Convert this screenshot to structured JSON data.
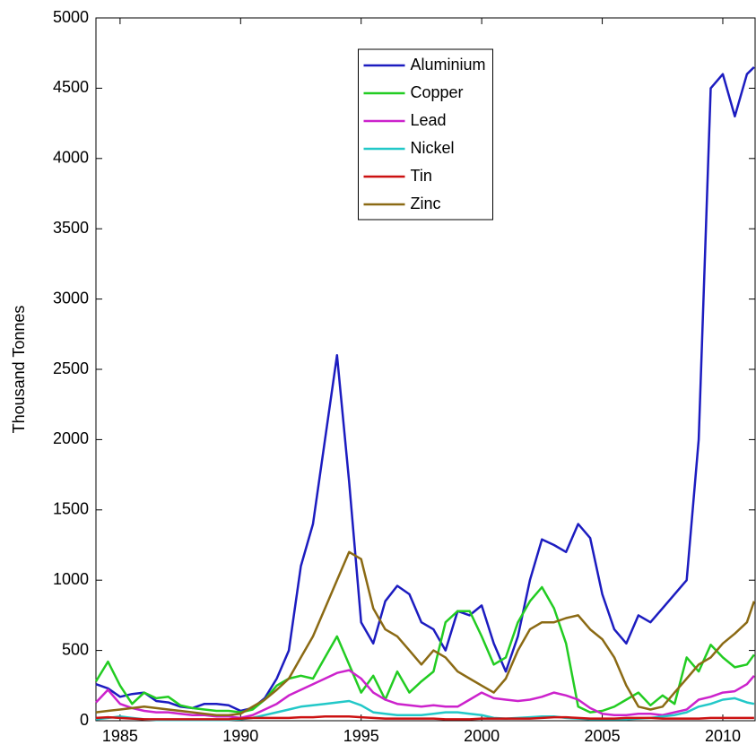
{
  "chart_data": {
    "type": "line",
    "y_label": "Thousand Tonnes",
    "xlim": [
      1984,
      2011.34
    ],
    "ylim": [
      0,
      5000
    ],
    "xticks": [
      1985,
      1990,
      1995,
      2000,
      2005,
      2010
    ],
    "yticks": [
      0,
      500,
      1000,
      1500,
      2000,
      2500,
      3000,
      3500,
      4000,
      4500,
      5000
    ],
    "grid": false,
    "legend": "upper center",
    "x": [
      1984,
      1984.5,
      1985,
      1985.5,
      1986,
      1986.5,
      1987,
      1987.5,
      1988,
      1988.5,
      1989,
      1989.5,
      1990,
      1990.5,
      1991,
      1991.5,
      1992,
      1992.5,
      1993,
      1993.5,
      1994,
      1994.5,
      1995,
      1995.5,
      1996,
      1996.5,
      1997,
      1997.5,
      1998,
      1998.5,
      1999,
      1999.5,
      2000,
      2000.5,
      2001,
      2001.5,
      2002,
      2002.5,
      2003,
      2003.5,
      2004,
      2004.5,
      2005,
      2005.5,
      2006,
      2006.5,
      2007,
      2007.5,
      2008,
      2008.5,
      2009,
      2009.5,
      2010,
      2010.5,
      2011,
      2011.3
    ],
    "series": [
      {
        "name": "Aluminium",
        "color": "#1c1cc0",
        "values": [
          260,
          230,
          170,
          190,
          200,
          140,
          130,
          100,
          90,
          120,
          120,
          110,
          70,
          90,
          160,
          300,
          500,
          1100,
          1400,
          2000,
          2600,
          1700,
          700,
          550,
          850,
          960,
          900,
          700,
          650,
          500,
          780,
          750,
          820,
          550,
          350,
          600,
          1000,
          1290,
          1250,
          1200,
          1400,
          1300,
          900,
          650,
          550,
          750,
          700,
          800,
          900,
          1000,
          2000,
          4500,
          4600,
          4300,
          4600,
          4650
        ]
      },
      {
        "name": "Copper",
        "color": "#22cc22",
        "values": [
          280,
          420,
          250,
          120,
          200,
          160,
          170,
          110,
          90,
          80,
          70,
          70,
          60,
          80,
          150,
          250,
          300,
          320,
          300,
          450,
          600,
          400,
          200,
          320,
          150,
          350,
          200,
          280,
          350,
          700,
          780,
          780,
          600,
          400,
          450,
          700,
          850,
          950,
          800,
          550,
          100,
          60,
          70,
          100,
          150,
          200,
          110,
          180,
          120,
          450,
          350,
          540,
          450,
          380,
          400,
          470
        ]
      },
      {
        "name": "Lead",
        "color": "#cc22cc",
        "values": [
          130,
          220,
          120,
          90,
          70,
          60,
          60,
          50,
          40,
          40,
          30,
          30,
          20,
          40,
          80,
          120,
          180,
          220,
          260,
          300,
          340,
          360,
          300,
          200,
          150,
          120,
          110,
          100,
          110,
          100,
          100,
          150,
          200,
          160,
          150,
          140,
          150,
          170,
          200,
          180,
          150,
          90,
          50,
          40,
          40,
          50,
          50,
          40,
          60,
          80,
          150,
          170,
          200,
          210,
          260,
          320
        ]
      },
      {
        "name": "Nickel",
        "color": "#22c8c8",
        "values": [
          10,
          20,
          30,
          20,
          10,
          5,
          5,
          5,
          5,
          5,
          5,
          5,
          10,
          20,
          40,
          60,
          80,
          100,
          110,
          120,
          130,
          140,
          110,
          60,
          50,
          40,
          40,
          40,
          50,
          60,
          60,
          50,
          40,
          20,
          15,
          20,
          25,
          30,
          30,
          20,
          15,
          10,
          10,
          10,
          10,
          15,
          20,
          30,
          40,
          60,
          100,
          120,
          150,
          160,
          130,
          120
        ]
      },
      {
        "name": "Tin",
        "color": "#cc1111",
        "values": [
          20,
          25,
          20,
          15,
          10,
          10,
          10,
          10,
          10,
          10,
          10,
          10,
          15,
          20,
          20,
          20,
          20,
          25,
          25,
          30,
          30,
          30,
          25,
          20,
          15,
          15,
          15,
          15,
          15,
          10,
          10,
          10,
          15,
          15,
          15,
          15,
          15,
          20,
          25,
          25,
          20,
          15,
          15,
          15,
          20,
          20,
          20,
          15,
          15,
          15,
          15,
          20,
          20,
          20,
          20,
          20
        ]
      },
      {
        "name": "Zinc",
        "color": "#8b6a14",
        "values": [
          60,
          70,
          80,
          90,
          100,
          90,
          80,
          70,
          60,
          50,
          40,
          40,
          50,
          100,
          150,
          220,
          300,
          450,
          600,
          800,
          1000,
          1200,
          1150,
          800,
          650,
          600,
          500,
          400,
          500,
          450,
          350,
          300,
          250,
          200,
          300,
          500,
          650,
          700,
          700,
          730,
          750,
          650,
          580,
          450,
          250,
          100,
          80,
          100,
          200,
          300,
          400,
          450,
          550,
          620,
          700,
          850
        ]
      }
    ]
  }
}
